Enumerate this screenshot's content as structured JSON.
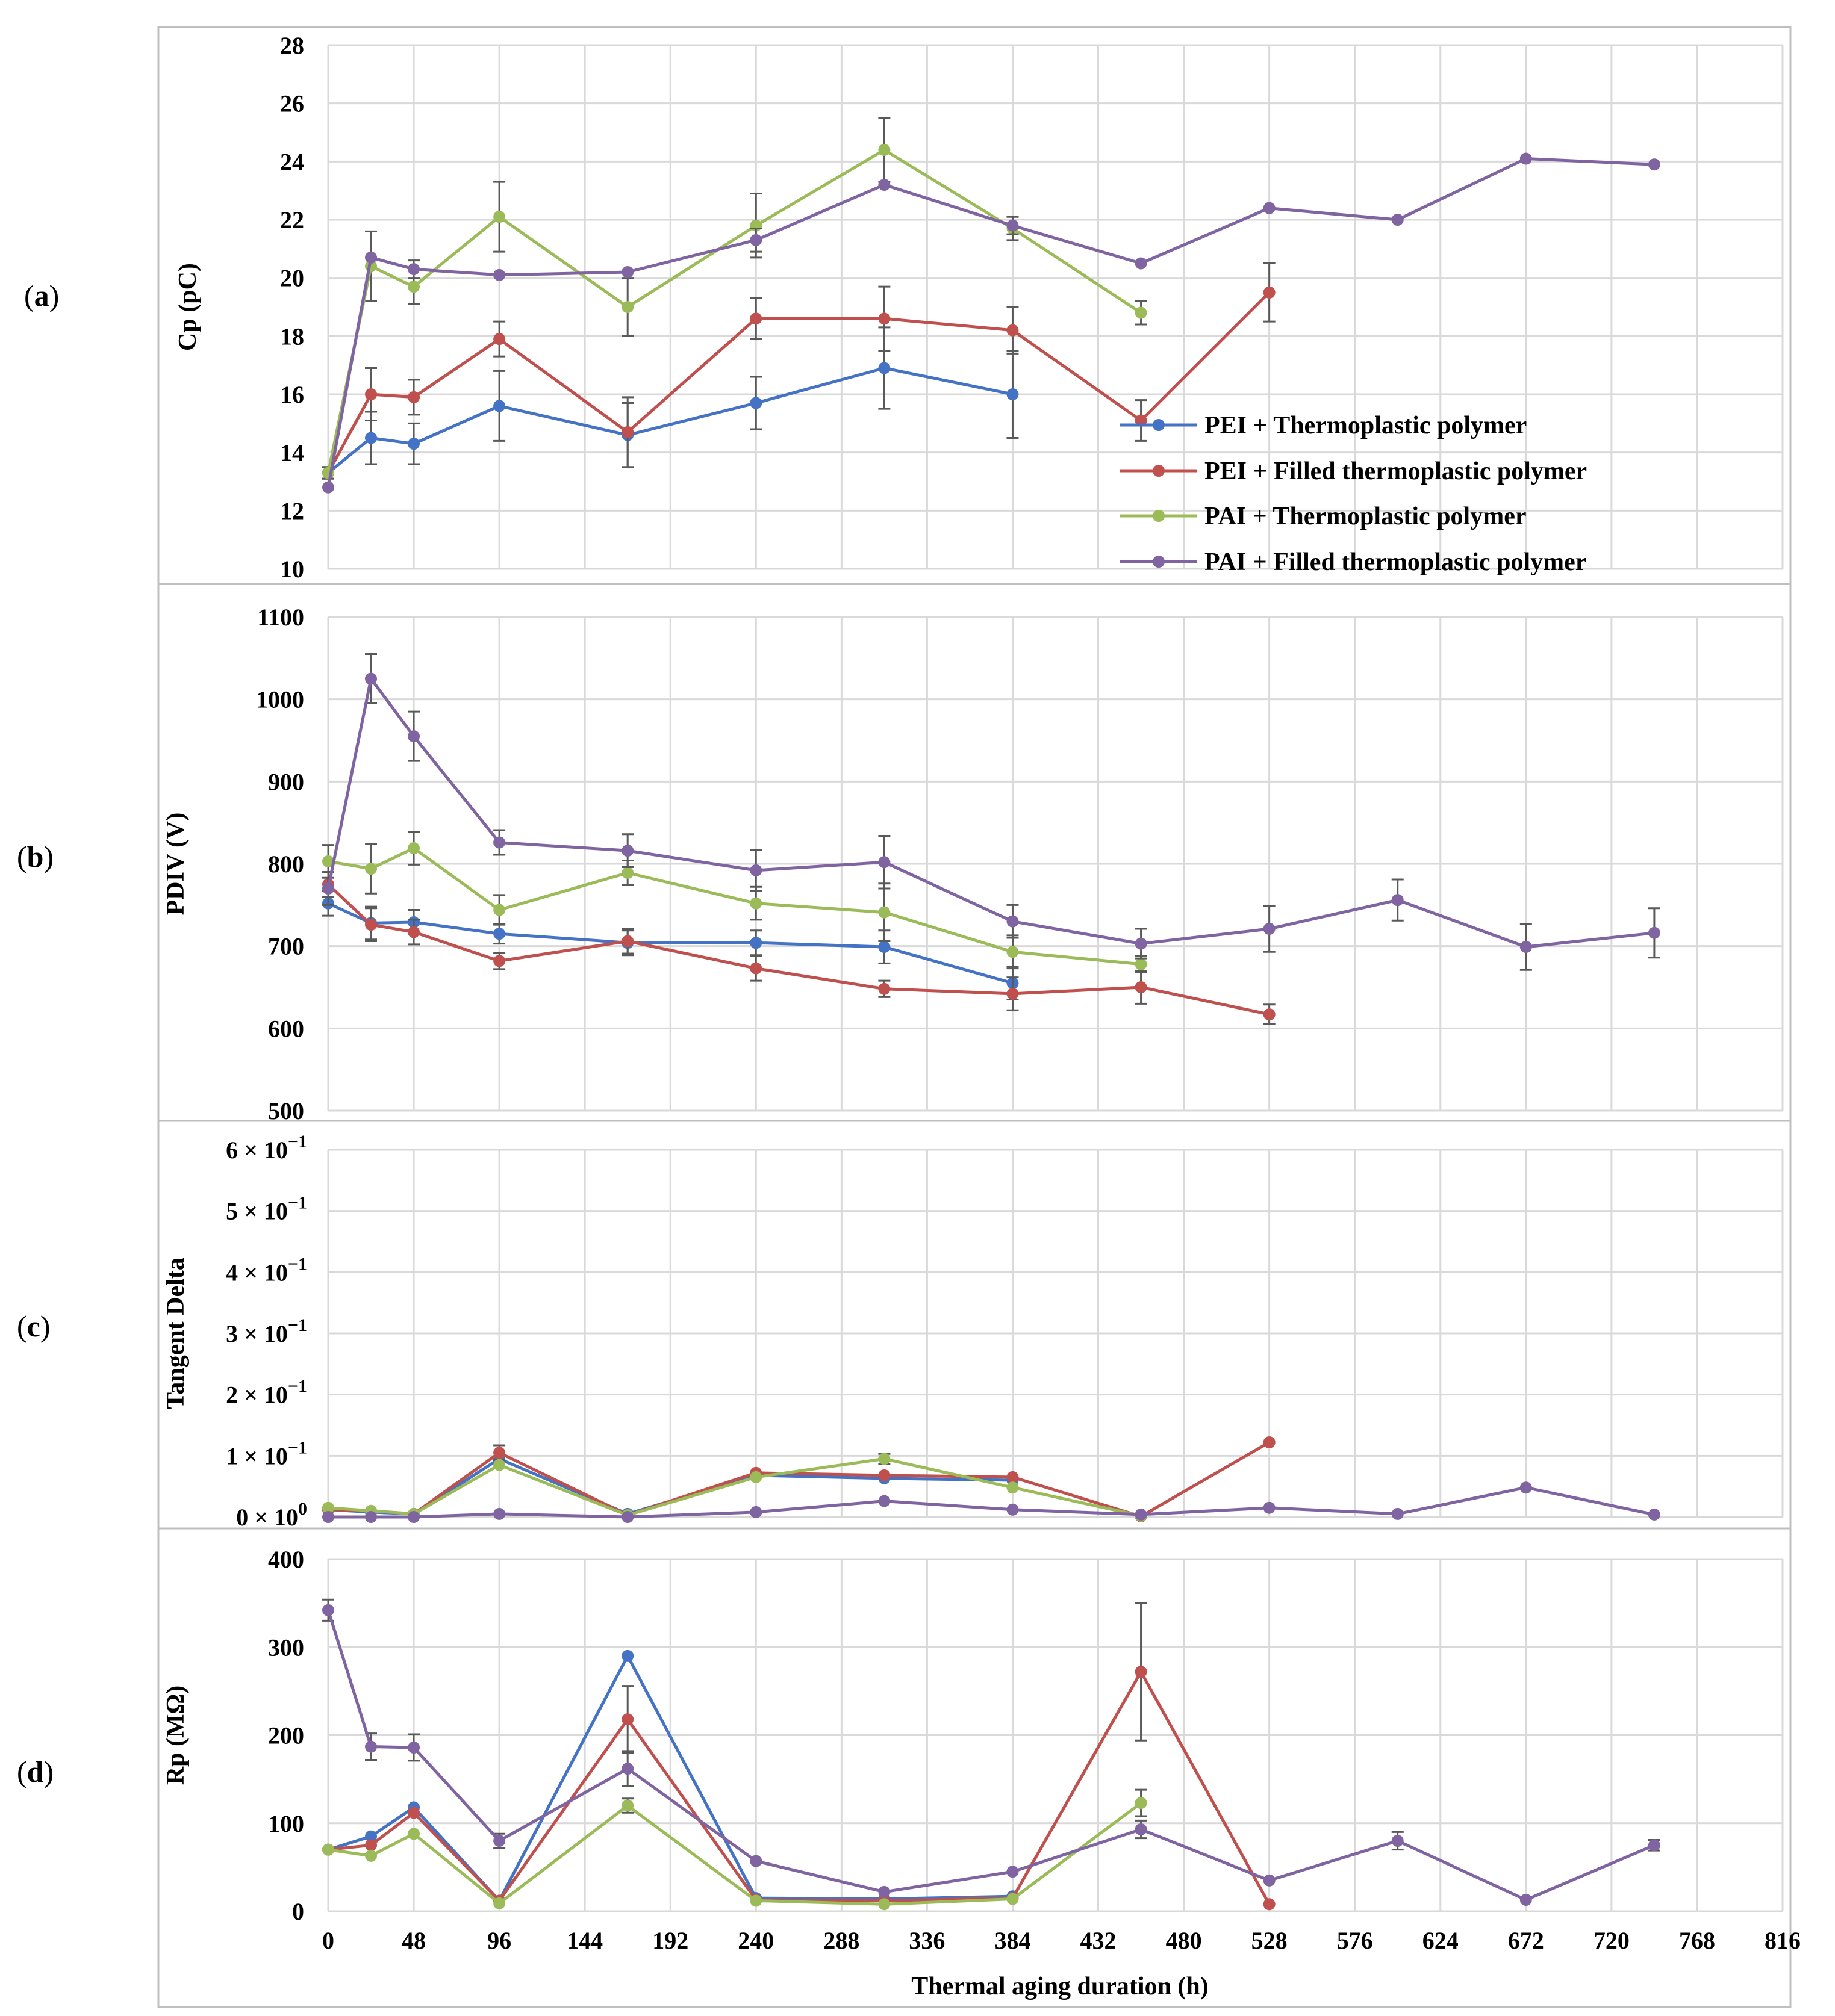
{
  "chart_data": {
    "type": "line",
    "xlabel": "Thermal aging duration (h)",
    "xlim": [
      0,
      816
    ],
    "xticks": [
      0,
      48,
      96,
      144,
      192,
      240,
      288,
      336,
      384,
      432,
      480,
      528,
      576,
      624,
      672,
      720,
      768,
      816
    ],
    "panel_labels": {
      "a_open": "(",
      "a_letter": "a",
      "a_close": ")",
      "b_open": "(",
      "b_letter": "b",
      "b_close": ")",
      "c_open": "(",
      "c_letter": "c",
      "c_close": ")",
      "d_open": "(",
      "d_letter": "d",
      "d_close": ")"
    },
    "legend": {
      "placement": "inside panel (a), lower-right",
      "entries": [
        "PEI + Thermoplastic polymer",
        "PEI + Filled thermoplastic polymer",
        "PAI + Thermoplastic polymer",
        "PAI + Filled thermoplastic polymer"
      ]
    },
    "series_colors": [
      "#4472c4",
      "#c0504d",
      "#9bbb59",
      "#8064a2"
    ],
    "panels": [
      {
        "id": "a",
        "ylabel": "Cp (pC)",
        "ylim": [
          10,
          28
        ],
        "yticks": [
          "10",
          "12",
          "14",
          "16",
          "18",
          "20",
          "22",
          "24",
          "26",
          "28"
        ],
        "yvalues": [
          10,
          12,
          14,
          16,
          18,
          20,
          22,
          24,
          26,
          28
        ],
        "series": [
          {
            "name": "PEI + Thermoplastic polymer",
            "x": [
              0,
              24,
              48,
              96,
              168,
              240,
              312,
              384
            ],
            "y": [
              13.3,
              14.5,
              14.3,
              15.6,
              14.6,
              15.7,
              16.9,
              16.0
            ],
            "err": [
              0.2,
              0.9,
              0.7,
              1.2,
              1.1,
              0.9,
              1.4,
              1.5
            ]
          },
          {
            "name": "PEI + Filled thermoplastic polymer",
            "x": [
              0,
              24,
              48,
              96,
              168,
              240,
              312,
              384,
              456,
              528
            ],
            "y": [
              13.3,
              16.0,
              15.9,
              17.9,
              14.7,
              18.6,
              18.6,
              18.2,
              15.1,
              19.5
            ],
            "err": [
              0.2,
              0.9,
              0.6,
              0.6,
              1.2,
              0.7,
              1.1,
              0.8,
              0.7,
              1.0
            ]
          },
          {
            "name": "PAI + Thermoplastic polymer",
            "x": [
              0,
              24,
              48,
              96,
              168,
              240,
              312,
              384,
              456
            ],
            "y": [
              13.3,
              20.4,
              19.7,
              22.1,
              19.0,
              21.8,
              24.4,
              21.7,
              18.8
            ],
            "err": [
              0.2,
              1.2,
              0.6,
              1.2,
              1.0,
              1.1,
              1.1,
              0.4,
              0.4
            ]
          },
          {
            "name": "PAI + Filled thermoplastic polymer",
            "x": [
              0,
              24,
              48,
              96,
              168,
              240,
              312,
              384,
              456,
              528,
              600,
              672,
              744
            ],
            "y": [
              12.8,
              20.7,
              20.3,
              20.1,
              20.2,
              21.3,
              23.2,
              21.8,
              20.5,
              22.4,
              22.0,
              24.1,
              23.9
            ],
            "err": [
              0,
              0,
              0.3,
              0,
              0,
              0.4,
              0,
              0.3,
              0,
              0,
              0,
              0,
              0
            ]
          }
        ]
      },
      {
        "id": "b",
        "ylabel": "PDIV (V)",
        "ylim": [
          500,
          1100
        ],
        "yticks": [
          "500",
          "600",
          "700",
          "800",
          "900",
          "1000",
          "1100"
        ],
        "yvalues": [
          500,
          600,
          700,
          800,
          900,
          1000,
          1100
        ],
        "series": [
          {
            "name": "PEI + Thermoplastic polymer",
            "x": [
              0,
              24,
              48,
              96,
              168,
              240,
              312,
              384
            ],
            "y": [
              752,
              728,
              729,
              715,
              704,
              704,
              699,
              655
            ],
            "err": [
              15,
              20,
              15,
              12,
              15,
              15,
              20,
              20
            ]
          },
          {
            "name": "PEI + Filled thermoplastic polymer",
            "x": [
              0,
              24,
              48,
              96,
              168,
              240,
              312,
              384,
              456,
              528
            ],
            "y": [
              775,
              726,
              717,
              682,
              706,
              673,
              648,
              642,
              650,
              617
            ],
            "err": [
              15,
              20,
              15,
              10,
              15,
              15,
              10,
              20,
              20,
              12
            ]
          },
          {
            "name": "PAI + Thermoplastic polymer",
            "x": [
              0,
              24,
              48,
              96,
              168,
              240,
              312,
              384,
              456
            ],
            "y": [
              803,
              794,
              819,
              744,
              789,
              752,
              741,
              693,
              678
            ],
            "err": [
              20,
              30,
              20,
              18,
              15,
              20,
              35,
              20,
              10
            ]
          },
          {
            "name": "PAI + Filled thermoplastic polymer",
            "x": [
              0,
              24,
              48,
              96,
              168,
              240,
              312,
              384,
              456,
              528,
              600,
              672,
              744
            ],
            "y": [
              770,
              1025,
              955,
              826,
              816,
              792,
              802,
              730,
              703,
              721,
              756,
              699,
              716
            ],
            "err": [
              20,
              30,
              30,
              15,
              20,
              25,
              32,
              20,
              18,
              28,
              25,
              28,
              30
            ]
          }
        ]
      },
      {
        "id": "c",
        "ylabel": "Tangent Delta",
        "ylim": [
          0,
          0.6
        ],
        "yticks": [
          "0 × 10",
          "1 × 10",
          "2 × 10",
          "3 × 10",
          "4 × 10",
          "5 × 10",
          "6 × 10"
        ],
        "yexponents": [
          "0",
          "−1",
          "−1",
          "−1",
          "−1",
          "−1",
          "−1"
        ],
        "yvalues": [
          0,
          0.1,
          0.2,
          0.3,
          0.4,
          0.5,
          0.6
        ],
        "series": [
          {
            "name": "PEI + Thermoplastic polymer",
            "x": [
              0,
              24,
              48,
              96,
              168,
              240,
              312,
              384
            ],
            "y": [
              0.012,
              0.008,
              0.005,
              0.095,
              0.005,
              0.068,
              0.063,
              0.06
            ],
            "err": [
              0,
              0,
              0,
              0,
              0,
              0,
              0,
              0
            ]
          },
          {
            "name": "PEI + Filled thermoplastic polymer",
            "x": [
              0,
              24,
              48,
              96,
              168,
              240,
              312,
              384,
              456,
              528
            ],
            "y": [
              0.012,
              0.01,
              0.005,
              0.105,
              0.003,
              0.072,
              0.068,
              0.065,
              0.001,
              0.122
            ],
            "err": [
              0,
              0,
              0,
              0.012,
              0,
              0,
              0,
              0,
              0,
              0
            ]
          },
          {
            "name": "PAI + Thermoplastic polymer",
            "x": [
              0,
              24,
              48,
              96,
              168,
              240,
              312,
              384,
              456
            ],
            "y": [
              0.015,
              0.01,
              0.005,
              0.085,
              0.003,
              0.065,
              0.095,
              0.048,
              0.002
            ],
            "err": [
              0,
              0,
              0,
              0,
              0,
              0,
              0.008,
              0,
              0
            ]
          },
          {
            "name": "PAI + Filled thermoplastic polymer",
            "x": [
              0,
              24,
              48,
              96,
              168,
              240,
              312,
              384,
              456,
              528,
              600,
              672,
              744
            ],
            "y": [
              0.0,
              0.0,
              0.0,
              0.005,
              0.0,
              0.008,
              0.026,
              0.012,
              0.004,
              0.015,
              0.005,
              0.048,
              0.004
            ],
            "err": [
              0,
              0,
              0,
              0,
              0,
              0,
              0,
              0,
              0,
              0,
              0,
              0,
              0
            ]
          }
        ]
      },
      {
        "id": "d",
        "ylabel": "Rp (MΩ)",
        "ylim": [
          0,
          400
        ],
        "yticks": [
          "0",
          "100",
          "200",
          "300",
          "400"
        ],
        "yvalues": [
          0,
          100,
          200,
          300,
          400
        ],
        "series": [
          {
            "name": "PEI + Thermoplastic polymer",
            "x": [
              0,
              24,
              48,
              96,
              168,
              240,
              312,
              384
            ],
            "y": [
              70,
              85,
              118,
              12,
              290,
              15,
              14,
              17
            ],
            "err": [
              0,
              0,
              0,
              0,
              0,
              0,
              0,
              0
            ]
          },
          {
            "name": "PEI + Filled thermoplastic polymer",
            "x": [
              0,
              24,
              48,
              96,
              168,
              240,
              312,
              384,
              456,
              528
            ],
            "y": [
              70,
              75,
              112,
              12,
              218,
              13,
              12,
              15,
              272,
              8
            ],
            "err": [
              0,
              0,
              0,
              0,
              38,
              0,
              0,
              0,
              78,
              0
            ]
          },
          {
            "name": "PAI + Thermoplastic polymer",
            "x": [
              0,
              24,
              48,
              96,
              168,
              240,
              312,
              384,
              456
            ],
            "y": [
              70,
              63,
              88,
              9,
              120,
              12,
              8,
              14,
              123
            ],
            "err": [
              0,
              0,
              0,
              0,
              8,
              0,
              0,
              0,
              15
            ]
          },
          {
            "name": "PAI + Filled thermoplastic polymer",
            "x": [
              0,
              24,
              48,
              96,
              168,
              240,
              312,
              384,
              456,
              528,
              600,
              672,
              744
            ],
            "y": [
              342,
              187,
              186,
              80,
              162,
              57,
              22,
              45,
              93,
              35,
              80,
              13,
              75
            ],
            "err": [
              12,
              15,
              15,
              8,
              20,
              0,
              0,
              0,
              10,
              0,
              10,
              0,
              6
            ]
          }
        ]
      }
    ]
  }
}
